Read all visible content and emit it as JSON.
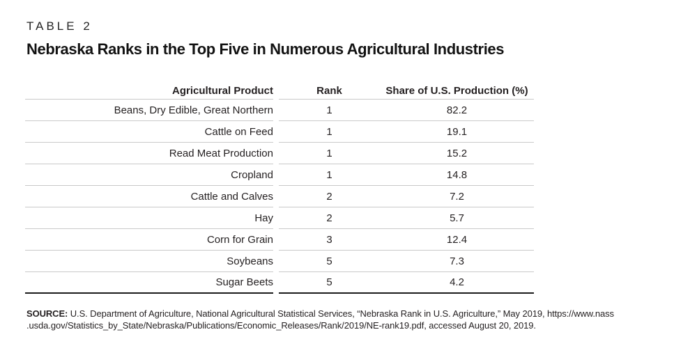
{
  "header": {
    "eyebrow": "TABLE 2",
    "title": "Nebraska Ranks in the Top Five in Numerous Agricultural Industries"
  },
  "table": {
    "columns": [
      "Agricultural Product",
      "Rank",
      "Share of U.S. Production (%)"
    ],
    "rows": [
      {
        "product": "Beans, Dry Edible, Great Northern",
        "rank": "1",
        "share": "82.2"
      },
      {
        "product": "Cattle on Feed",
        "rank": "1",
        "share": "19.1"
      },
      {
        "product": "Read Meat Production",
        "rank": "1",
        "share": "15.2"
      },
      {
        "product": "Cropland",
        "rank": "1",
        "share": "14.8"
      },
      {
        "product": "Cattle and Calves",
        "rank": "2",
        "share": "7.2"
      },
      {
        "product": "Hay",
        "rank": "2",
        "share": "5.7"
      },
      {
        "product": "Corn for Grain",
        "rank": "3",
        "share": "12.4"
      },
      {
        "product": "Soybeans",
        "rank": "5",
        "share": "7.3"
      },
      {
        "product": "Sugar Beets",
        "rank": "5",
        "share": "4.2"
      }
    ]
  },
  "source": {
    "label": "SOURCE:",
    "line1": "U.S. Department of Agriculture, National Agricultural Statistical Services, “Nebraska Rank in U.S. Agriculture,” May 2019, https://www.nass",
    "line2": ".usda.gov/Statistics_by_State/Nebraska/Publications/Economic_Releases/Rank/2019/NE-rank19.pdf, accessed August 20, 2019."
  },
  "colors": {
    "text": "#231f20",
    "row_line": "#c9c9c9",
    "bottom_line": "#1a1a1a"
  }
}
